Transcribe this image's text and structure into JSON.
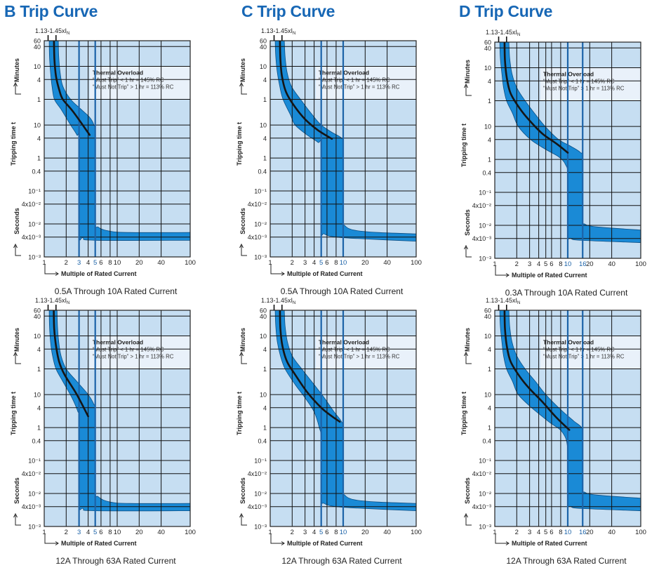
{
  "titles": [
    "B Trip Curve",
    "C Trip Curve",
    "D Trip Curve"
  ],
  "colors": {
    "title": "#1767b5",
    "plot_bg": "#c6def2",
    "band": "#1a8ad6",
    "band_edge": "#0a4f86",
    "highlight": "#1c63a8",
    "grid": "#111111",
    "center_line": "#151515"
  },
  "common": {
    "y_ticks": [
      {
        "value_s": 3600,
        "label": "60"
      },
      {
        "value_s": 2400,
        "label": "40"
      },
      {
        "value_s": 600,
        "label": "10"
      },
      {
        "value_s": 240,
        "label": "4"
      },
      {
        "value_s": 60,
        "label": "1"
      },
      {
        "value_s": 10,
        "label": "10"
      },
      {
        "value_s": 4,
        "label": "4"
      },
      {
        "value_s": 1,
        "label": "1"
      },
      {
        "value_s": 0.4,
        "label": "0.4"
      },
      {
        "value_s": 0.1,
        "label": "10⁻¹"
      },
      {
        "value_s": 0.04,
        "label": "4x10⁻²"
      },
      {
        "value_s": 0.01,
        "label": "10⁻²"
      },
      {
        "value_s": 0.004,
        "label": "4x10⁻³"
      },
      {
        "value_s": 0.001,
        "label": "10⁻³"
      }
    ],
    "x_ticks": [
      1,
      2,
      3,
      4,
      5,
      6,
      8,
      10,
      20,
      40,
      100
    ],
    "xlim": [
      1,
      100
    ],
    "ylim_seconds": [
      0.001,
      3600
    ],
    "x_scale": "log",
    "y_scale": "log",
    "grid": true,
    "ylabel": "Tripping time t",
    "ylabel_minutes": "Minutes",
    "ylabel_seconds": "Seconds",
    "xlabel": "Multiple of Rated Current",
    "range_marker": {
      "text": "1.13-1.45xI",
      "sub": "N",
      "from": 1.13,
      "to": 1.45
    },
    "thermal_box": {
      "title": "Thermal Overload",
      "line1": "“Must Trip” < 1 hr = 145% RC",
      "line2": "“Must Not Trip” > 1 hr = 113% RC"
    }
  },
  "chart_data": [
    {
      "type": "area",
      "title": "B Trip Curve",
      "subtitle": "0.5A Through 10A Rated Current",
      "highlight_x": [
        3,
        5
      ],
      "band_upper": [
        [
          1.56,
          3600
        ],
        [
          1.58,
          1200
        ],
        [
          1.65,
          400
        ],
        [
          1.8,
          150
        ],
        [
          2.3,
          60
        ],
        [
          3.2,
          30
        ],
        [
          4.2,
          17
        ],
        [
          4.8,
          10
        ],
        [
          5,
          5
        ],
        [
          5,
          0.015
        ],
        [
          5.5,
          0.008
        ],
        [
          8,
          0.006
        ],
        [
          15,
          0.0055
        ],
        [
          100,
          0.0055
        ]
      ],
      "band_lower": [
        [
          1.17,
          3600
        ],
        [
          1.18,
          1200
        ],
        [
          1.22,
          400
        ],
        [
          1.28,
          150
        ],
        [
          1.38,
          60
        ],
        [
          1.7,
          30
        ],
        [
          2.3,
          10
        ],
        [
          2.8,
          5
        ],
        [
          3,
          3
        ],
        [
          3,
          0.006
        ],
        [
          3.4,
          0.0038
        ],
        [
          5,
          0.0032
        ],
        [
          100,
          0.0032
        ]
      ],
      "center_line": [
        [
          1.36,
          3600
        ],
        [
          1.38,
          1000
        ],
        [
          1.45,
          300
        ],
        [
          1.6,
          120
        ],
        [
          1.8,
          60
        ],
        [
          2.5,
          25
        ],
        [
          4.2,
          5
        ]
      ]
    },
    {
      "type": "area",
      "title": "C Trip Curve",
      "subtitle": "0.5A Through 10A Rated Current",
      "highlight_x": [
        5,
        10
      ],
      "band_upper": [
        [
          1.56,
          3600
        ],
        [
          1.6,
          1200
        ],
        [
          1.7,
          400
        ],
        [
          1.95,
          150
        ],
        [
          2.6,
          60
        ],
        [
          3.8,
          20
        ],
        [
          5,
          10
        ],
        [
          7,
          6
        ],
        [
          9.5,
          4
        ],
        [
          10,
          2.5
        ],
        [
          10,
          0.015
        ],
        [
          10.5,
          0.009
        ],
        [
          14,
          0.0065
        ],
        [
          30,
          0.0055
        ],
        [
          100,
          0.005
        ]
      ],
      "band_lower": [
        [
          1.17,
          3600
        ],
        [
          1.19,
          1200
        ],
        [
          1.25,
          400
        ],
        [
          1.35,
          150
        ],
        [
          1.5,
          60
        ],
        [
          1.9,
          20
        ],
        [
          2.2,
          10
        ],
        [
          3.2,
          5
        ],
        [
          4.5,
          3
        ],
        [
          5,
          2
        ],
        [
          5,
          0.008
        ],
        [
          5.5,
          0.005
        ],
        [
          8,
          0.004
        ],
        [
          20,
          0.0035
        ],
        [
          100,
          0.003
        ]
      ],
      "center_line": [
        [
          1.36,
          3600
        ],
        [
          1.38,
          1000
        ],
        [
          1.45,
          300
        ],
        [
          1.65,
          100
        ],
        [
          2.1,
          40
        ],
        [
          3,
          15
        ],
        [
          4.5,
          7
        ],
        [
          7,
          3.8
        ]
      ]
    },
    {
      "type": "area",
      "title": "D Trip Curve",
      "subtitle": "0.3A Through 10A Rated Current",
      "highlight_x": [
        10,
        16
      ],
      "band_upper": [
        [
          1.56,
          3600
        ],
        [
          1.6,
          1200
        ],
        [
          1.72,
          400
        ],
        [
          2,
          150
        ],
        [
          2.6,
          60
        ],
        [
          3.5,
          25
        ],
        [
          4.9,
          10
        ],
        [
          7.5,
          4
        ],
        [
          11,
          2.5
        ],
        [
          15,
          1.6
        ],
        [
          16,
          1
        ],
        [
          16,
          0.016
        ],
        [
          17,
          0.011
        ],
        [
          25,
          0.009
        ],
        [
          100,
          0.0072
        ]
      ],
      "band_lower": [
        [
          1.17,
          3600
        ],
        [
          1.19,
          1200
        ],
        [
          1.25,
          400
        ],
        [
          1.32,
          150
        ],
        [
          1.45,
          60
        ],
        [
          1.75,
          25
        ],
        [
          2.1,
          10
        ],
        [
          3.1,
          4
        ],
        [
          5,
          2
        ],
        [
          7.5,
          1.2
        ],
        [
          9.3,
          0.7
        ],
        [
          10,
          0.3
        ],
        [
          10,
          0.006
        ],
        [
          11,
          0.004
        ],
        [
          16,
          0.0035
        ],
        [
          100,
          0.003
        ]
      ],
      "center_line": [
        [
          1.36,
          3600
        ],
        [
          1.38,
          1000
        ],
        [
          1.46,
          300
        ],
        [
          1.65,
          100
        ],
        [
          2.2,
          35
        ],
        [
          3,
          15
        ],
        [
          4.5,
          6
        ],
        [
          7,
          3
        ],
        [
          10,
          1.6
        ]
      ]
    },
    {
      "type": "area",
      "title": "",
      "subtitle": "12A Through 63A Rated Current",
      "highlight_x": [
        3,
        5
      ],
      "band_upper": [
        [
          1.5,
          3600
        ],
        [
          1.52,
          1200
        ],
        [
          1.58,
          400
        ],
        [
          1.7,
          150
        ],
        [
          2,
          60
        ],
        [
          2.8,
          25
        ],
        [
          4,
          10
        ],
        [
          4.8,
          5
        ],
        [
          5,
          3
        ],
        [
          5,
          0.015
        ],
        [
          5.5,
          0.008
        ],
        [
          8,
          0.0055
        ],
        [
          15,
          0.005
        ],
        [
          100,
          0.005
        ]
      ],
      "band_lower": [
        [
          1.17,
          3600
        ],
        [
          1.18,
          1200
        ],
        [
          1.22,
          400
        ],
        [
          1.3,
          150
        ],
        [
          1.45,
          60
        ],
        [
          1.8,
          25
        ],
        [
          2.4,
          8
        ],
        [
          2.9,
          3
        ],
        [
          3,
          2
        ],
        [
          3,
          0.006
        ],
        [
          3.4,
          0.0035
        ],
        [
          5,
          0.003
        ],
        [
          100,
          0.003
        ]
      ],
      "center_line": [
        [
          1.35,
          3600
        ],
        [
          1.37,
          1000
        ],
        [
          1.45,
          300
        ],
        [
          1.6,
          100
        ],
        [
          1.9,
          40
        ],
        [
          2.8,
          10
        ],
        [
          4,
          2.2
        ]
      ]
    },
    {
      "type": "area",
      "title": "",
      "subtitle": "12A Through 63A Rated Current",
      "highlight_x": [
        5,
        10
      ],
      "band_upper": [
        [
          1.56,
          3600
        ],
        [
          1.6,
          1200
        ],
        [
          1.72,
          400
        ],
        [
          2,
          150
        ],
        [
          2.7,
          60
        ],
        [
          4,
          20
        ],
        [
          5.5,
          8
        ],
        [
          7.5,
          3
        ],
        [
          9.5,
          1.5
        ],
        [
          10,
          0.8
        ],
        [
          10,
          0.015
        ],
        [
          10.5,
          0.009
        ],
        [
          14,
          0.0065
        ],
        [
          30,
          0.0055
        ],
        [
          100,
          0.005
        ]
      ],
      "band_lower": [
        [
          1.17,
          3600
        ],
        [
          1.19,
          1200
        ],
        [
          1.25,
          400
        ],
        [
          1.38,
          150
        ],
        [
          1.6,
          60
        ],
        [
          2.2,
          20
        ],
        [
          3,
          8
        ],
        [
          4,
          3
        ],
        [
          4.7,
          1
        ],
        [
          5,
          0.4
        ],
        [
          5,
          0.008
        ],
        [
          5.5,
          0.005
        ],
        [
          8,
          0.004
        ],
        [
          20,
          0.0035
        ],
        [
          100,
          0.003
        ]
      ],
      "center_line": [
        [
          1.36,
          3600
        ],
        [
          1.38,
          1000
        ],
        [
          1.47,
          300
        ],
        [
          1.7,
          100
        ],
        [
          2.2,
          40
        ],
        [
          3.2,
          12
        ],
        [
          5,
          4
        ],
        [
          7,
          2.2
        ],
        [
          9,
          1.5
        ]
      ]
    },
    {
      "type": "area",
      "title": "",
      "subtitle": "12A Through 63A Rated Current",
      "highlight_x": [
        10,
        16
      ],
      "band_upper": [
        [
          1.56,
          3600
        ],
        [
          1.6,
          1200
        ],
        [
          1.72,
          400
        ],
        [
          2,
          150
        ],
        [
          2.6,
          60
        ],
        [
          3.6,
          25
        ],
        [
          5,
          10
        ],
        [
          8,
          3.5
        ],
        [
          12,
          1.6
        ],
        [
          15.5,
          1
        ],
        [
          16,
          0.6
        ],
        [
          16,
          0.016
        ],
        [
          17,
          0.011
        ],
        [
          25,
          0.009
        ],
        [
          100,
          0.0072
        ]
      ],
      "band_lower": [
        [
          1.17,
          3600
        ],
        [
          1.19,
          1200
        ],
        [
          1.25,
          400
        ],
        [
          1.32,
          150
        ],
        [
          1.45,
          60
        ],
        [
          1.75,
          25
        ],
        [
          2.1,
          10
        ],
        [
          3.2,
          4
        ],
        [
          5.5,
          1.5
        ],
        [
          8.5,
          0.7
        ],
        [
          10,
          0.2
        ],
        [
          10,
          0.006
        ],
        [
          11,
          0.004
        ],
        [
          16,
          0.0035
        ],
        [
          100,
          0.003
        ]
      ],
      "center_line": [
        [
          1.36,
          3600
        ],
        [
          1.38,
          1000
        ],
        [
          1.46,
          300
        ],
        [
          1.65,
          100
        ],
        [
          2.2,
          35
        ],
        [
          3,
          15
        ],
        [
          4.5,
          6
        ],
        [
          7,
          2
        ],
        [
          10.5,
          0.85
        ]
      ]
    }
  ]
}
